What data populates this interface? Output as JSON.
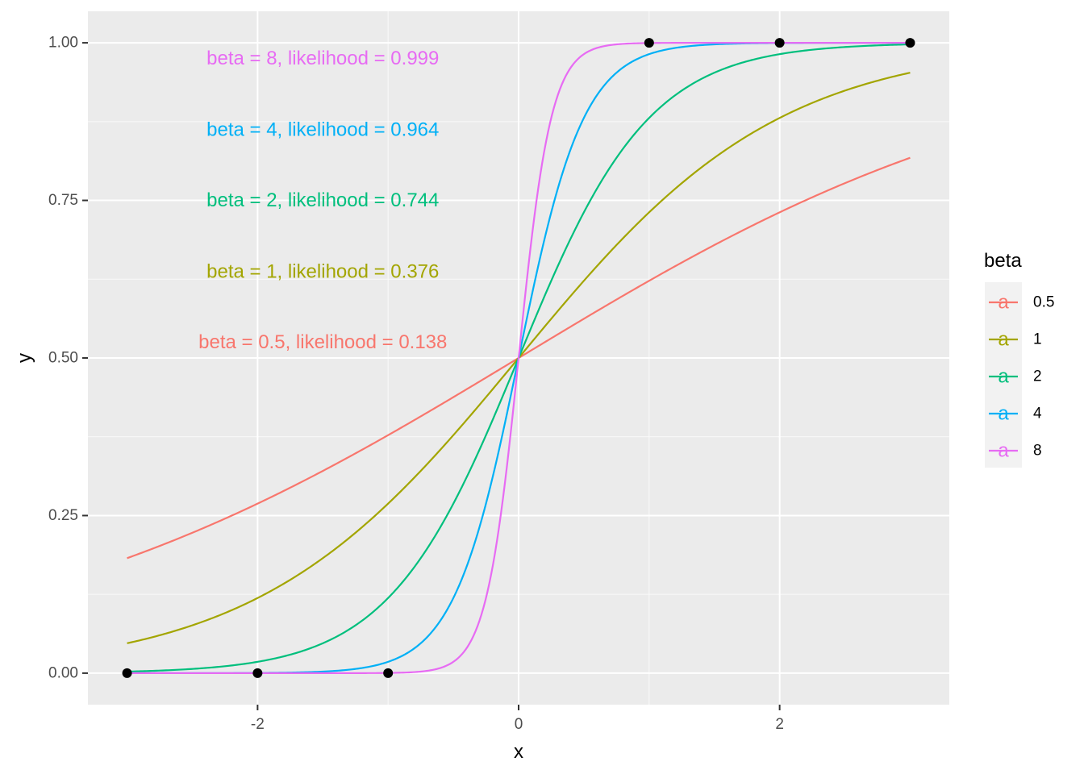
{
  "chart_data": {
    "type": "line",
    "xlabel": "x",
    "ylabel": "y",
    "xlim": [
      -3.3,
      3.3
    ],
    "ylim": [
      -0.05,
      1.05
    ],
    "x_ticks": [
      -2,
      0,
      2
    ],
    "x_tick_labels": [
      "-2",
      "0",
      "2"
    ],
    "y_ticks": [
      0,
      0.25,
      0.5,
      0.75,
      1
    ],
    "y_tick_labels": [
      "0.00",
      "0.25",
      "0.50",
      "0.75",
      "1.00"
    ],
    "grid": true,
    "background": "#ebebeb",
    "function": "logistic 1/(1+exp(-beta*x)), x from -3 to 3",
    "x_range": [
      -3,
      3
    ],
    "series": [
      {
        "name": "0.5",
        "beta": 0.5,
        "color": "#F8766D"
      },
      {
        "name": "1",
        "beta": 1,
        "color": "#A3A500"
      },
      {
        "name": "2",
        "beta": 2,
        "color": "#00BF7D"
      },
      {
        "name": "4",
        "beta": 4,
        "color": "#00B0F6"
      },
      {
        "name": "8",
        "beta": 8,
        "color": "#E76BF3"
      }
    ],
    "points": [
      {
        "x": -3,
        "y": 0
      },
      {
        "x": -2,
        "y": 0
      },
      {
        "x": -1,
        "y": 0
      },
      {
        "x": 1,
        "y": 1
      },
      {
        "x": 2,
        "y": 1
      },
      {
        "x": 3,
        "y": 1
      }
    ],
    "point_color": "#000000",
    "annotations": [
      {
        "text": "beta = 8, likelihood = 0.999",
        "x": -1.5,
        "y": 0.975,
        "color": "#E76BF3"
      },
      {
        "text": "beta = 4, likelihood = 0.964",
        "x": -1.5,
        "y": 0.862,
        "color": "#00B0F6"
      },
      {
        "text": "beta = 2, likelihood = 0.744",
        "x": -1.5,
        "y": 0.75,
        "color": "#00BF7D"
      },
      {
        "text": "beta = 1, likelihood = 0.376",
        "x": -1.5,
        "y": 0.637,
        "color": "#A3A500"
      },
      {
        "text": "beta = 0.5, likelihood = 0.138",
        "x": -1.5,
        "y": 0.525,
        "color": "#F8766D"
      }
    ],
    "legend": {
      "title": "beta",
      "position": "right",
      "key_glyph": "a",
      "entries": [
        "0.5",
        "1",
        "2",
        "4",
        "8"
      ]
    }
  }
}
